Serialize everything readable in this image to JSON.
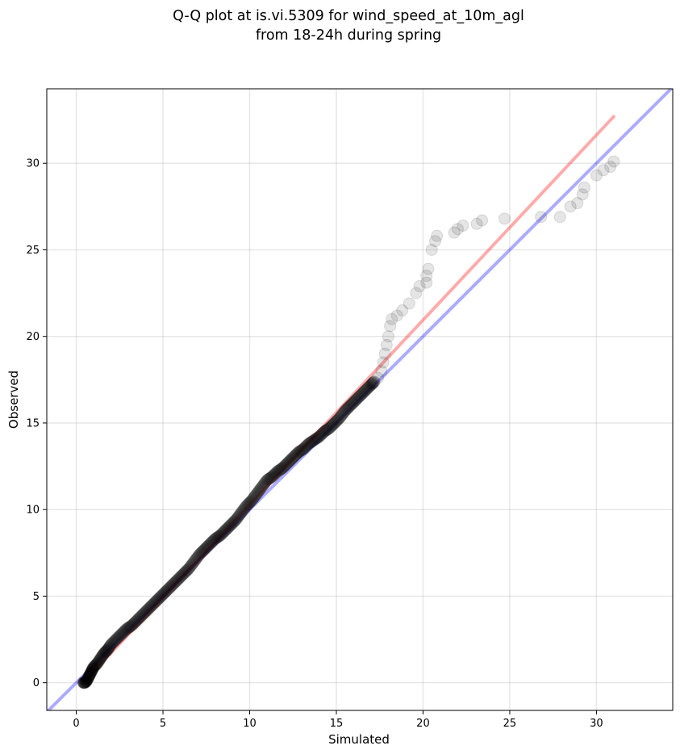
{
  "chart_data": {
    "type": "scatter",
    "title_line1": "Q-Q plot at is.vi.5309 for wind_speed_at_10m_agl",
    "title_line2": "from 18-24h during spring",
    "xlabel": "Simulated",
    "ylabel": "Observed",
    "xlim": [
      -1.7,
      34.4
    ],
    "ylim": [
      -1.6,
      34.3
    ],
    "xticks": [
      0,
      5,
      10,
      15,
      20,
      25,
      30
    ],
    "yticks": [
      0,
      5,
      10,
      15,
      20,
      25,
      30
    ],
    "grid": true,
    "colors": {
      "points": "#000000",
      "identity_line": "#0000ff",
      "fit_line": "#ff0000"
    },
    "lines": [
      {
        "name": "",
        "kind": "identity",
        "x": [
          -1.7,
          34.4
        ],
        "y": [
          -1.7,
          34.4
        ]
      },
      {
        "name": "",
        "kind": "fit",
        "x": [
          0.4,
          31.0
        ],
        "y": [
          0.0,
          32.7
        ]
      }
    ],
    "series": [
      {
        "name": "",
        "x": [
          0.4,
          0.5,
          0.6,
          0.7,
          0.8,
          0.9,
          1.0,
          1.2,
          1.4,
          1.6,
          1.8,
          2.0,
          2.3,
          2.6,
          2.9,
          3.2,
          3.5,
          3.8,
          4.1,
          4.4,
          4.7,
          5.0,
          5.3,
          5.6,
          5.9,
          6.2,
          6.5,
          6.8,
          7.1,
          7.4,
          7.7,
          8.0,
          8.3,
          8.6,
          8.9,
          9.2,
          9.5,
          9.8,
          10.1,
          10.4,
          10.7,
          11.0,
          11.3,
          11.6,
          11.9,
          12.2,
          12.5,
          12.8,
          13.1,
          13.4,
          13.7,
          14.0,
          14.3,
          14.6,
          14.9,
          15.2,
          15.5,
          15.8,
          16.1,
          16.4,
          16.7,
          17.0,
          17.2,
          17.4,
          17.6,
          17.7,
          17.8,
          17.9,
          18.0,
          18.1,
          18.2,
          18.5,
          18.8,
          19.2,
          19.6,
          19.8,
          20.2,
          20.2,
          20.3,
          20.5,
          20.7,
          20.8,
          21.8,
          22.0,
          22.3,
          23.1,
          23.4,
          24.7,
          26.8,
          27.9,
          28.5,
          28.9,
          29.2,
          29.3,
          30.0,
          30.4,
          30.8,
          31.0
        ],
        "y": [
          0.0,
          0.0,
          0.1,
          0.3,
          0.5,
          0.7,
          0.9,
          1.1,
          1.4,
          1.7,
          1.9,
          2.2,
          2.5,
          2.8,
          3.1,
          3.3,
          3.6,
          3.9,
          4.2,
          4.5,
          4.8,
          5.1,
          5.4,
          5.7,
          6.0,
          6.3,
          6.6,
          7.0,
          7.4,
          7.7,
          8.0,
          8.3,
          8.5,
          8.8,
          9.1,
          9.4,
          9.8,
          10.2,
          10.5,
          10.9,
          11.3,
          11.7,
          11.9,
          12.2,
          12.4,
          12.7,
          13.0,
          13.3,
          13.5,
          13.8,
          14.0,
          14.2,
          14.5,
          14.7,
          15.0,
          15.3,
          15.7,
          16.0,
          16.3,
          16.6,
          16.9,
          17.2,
          17.4,
          17.6,
          18.0,
          18.5,
          19.0,
          19.5,
          20.0,
          20.6,
          21.0,
          21.2,
          21.5,
          21.9,
          22.5,
          22.9,
          23.1,
          23.5,
          23.9,
          25.0,
          25.5,
          25.8,
          26.0,
          26.2,
          26.4,
          26.5,
          26.7,
          26.8,
          26.9,
          26.9,
          27.5,
          27.7,
          28.2,
          28.6,
          29.3,
          29.6,
          29.8,
          30.1
        ]
      }
    ]
  }
}
